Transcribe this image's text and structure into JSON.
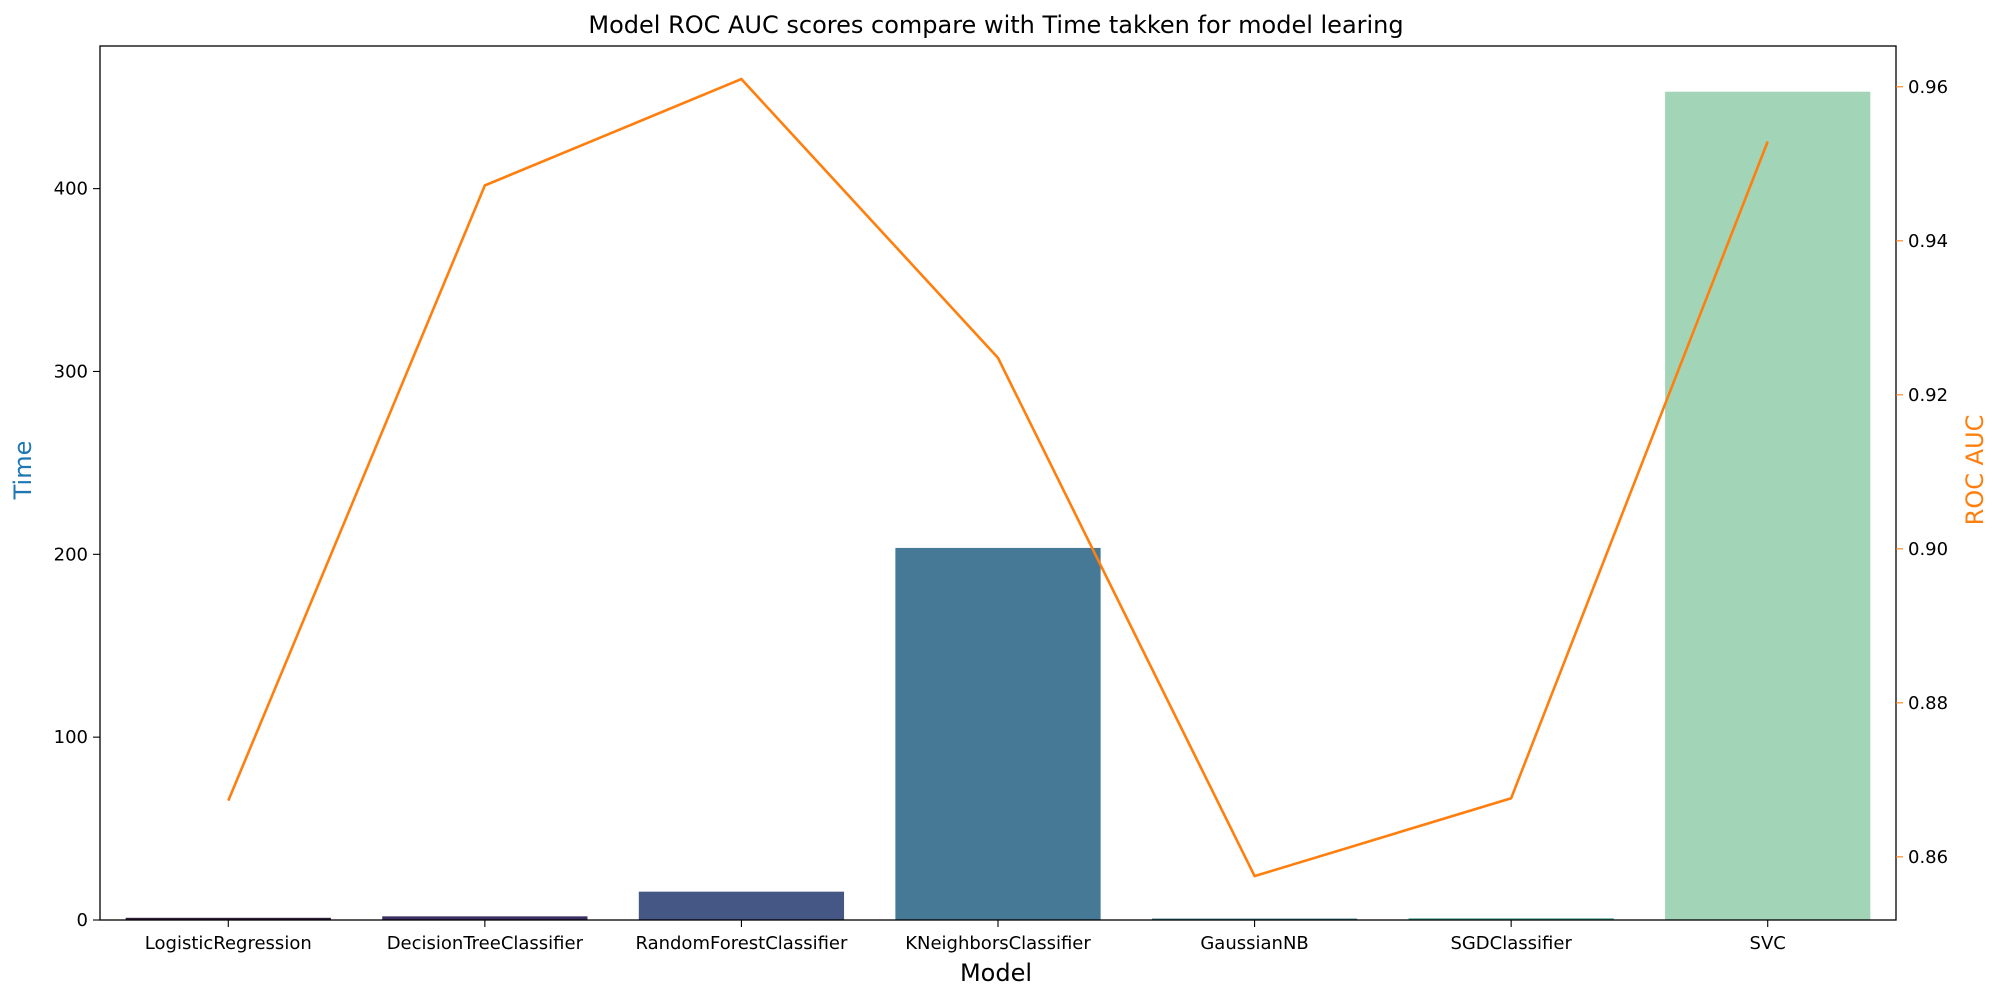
{
  "chart_data": {
    "type": "bar",
    "title": "Model ROC AUC scores compare with Time takken for model learing",
    "xlabel": "Model",
    "ylabel": "Time",
    "y2label": "ROC AUC",
    "categories": [
      "LogisticRegression",
      "DecisionTreeClassifier",
      "RandomForestClassifier",
      "KNeighborsClassifier",
      "GaussianNB",
      "SGDClassifier",
      "SVC"
    ],
    "series": [
      {
        "name": "Time",
        "type": "bar",
        "axis": "left",
        "values": [
          1.2,
          2.0,
          15.5,
          203.5,
          0.8,
          0.9,
          453.0
        ],
        "colors": [
          "#2e1e3b",
          "#3a3061",
          "#455784",
          "#457996",
          "#44808f",
          "#47a08e",
          "#a2d5b7"
        ]
      },
      {
        "name": "ROC AUC",
        "type": "line",
        "axis": "right",
        "values": [
          0.8673,
          0.9472,
          0.961,
          0.9248,
          0.8575,
          0.8676,
          0.9529
        ],
        "color": "#ff7f0e"
      }
    ],
    "ylim": [
      0,
      478
    ],
    "y2lim": [
      0.8518,
      0.9653
    ],
    "yticks": [
      "0",
      "100",
      "200",
      "300",
      "400"
    ],
    "y2ticks": [
      "0.86",
      "0.88",
      "0.90",
      "0.92",
      "0.94",
      "0.96"
    ],
    "ylabel_color": "#1f77b4",
    "y2label_color": "#ff7f0e",
    "grid": false
  }
}
